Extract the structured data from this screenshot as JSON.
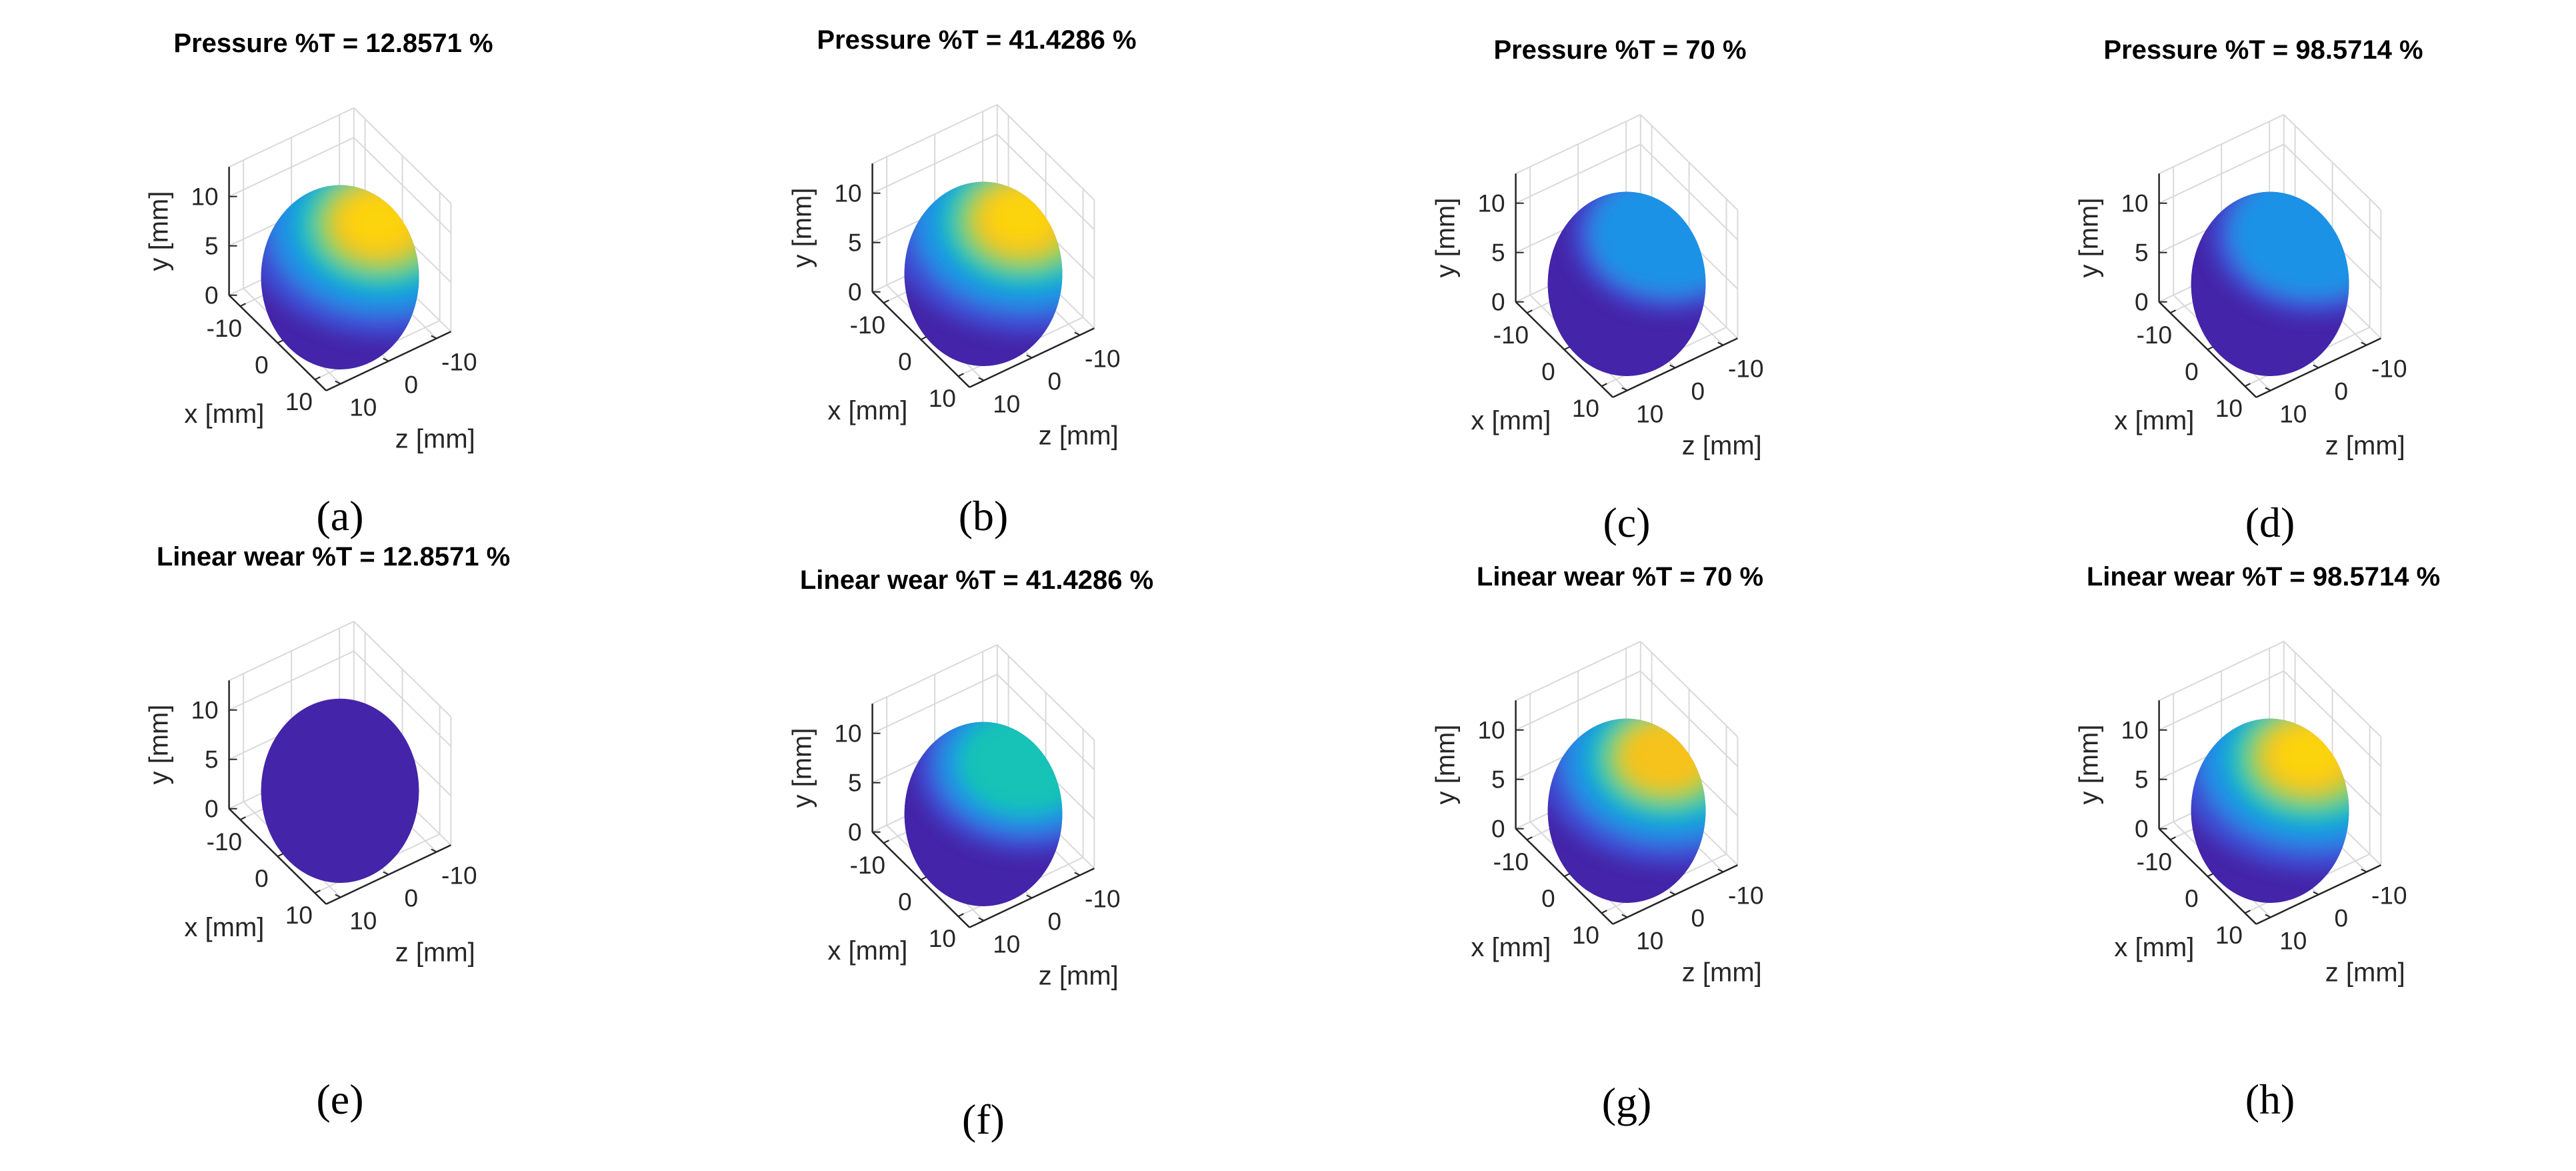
{
  "chart_data": [
    {
      "id": "a",
      "type": "surface3d",
      "caption": "(a)",
      "title": "Pressure  %T = 12.8571 %",
      "quantity": "Pressure",
      "percent_T": 12.8571,
      "hotspot_intensity": 1.0,
      "xlabel": "x [mm]",
      "ylabel": "y [mm]",
      "zlabel": "z [mm]",
      "yticks": [
        "0",
        "5",
        "10"
      ],
      "xticks": [
        "-10",
        "0",
        "10"
      ],
      "zticks": [
        "-10",
        "0",
        "10"
      ],
      "xlim": [
        -13,
        13
      ],
      "ylim": [
        0,
        13
      ],
      "zlim": [
        -13,
        13
      ]
    },
    {
      "id": "b",
      "type": "surface3d",
      "caption": "(b)",
      "title": "Pressure  %T = 41.4286 %",
      "quantity": "Pressure",
      "percent_T": 41.4286,
      "hotspot_intensity": 1.0,
      "xlabel": "x [mm]",
      "ylabel": "y [mm]",
      "zlabel": "z [mm]",
      "yticks": [
        "0",
        "5",
        "10"
      ],
      "xticks": [
        "-10",
        "0",
        "10"
      ],
      "zticks": [
        "-10",
        "0",
        "10"
      ],
      "xlim": [
        -13,
        13
      ],
      "ylim": [
        0,
        13
      ],
      "zlim": [
        -13,
        13
      ]
    },
    {
      "id": "c",
      "type": "surface3d",
      "caption": "(c)",
      "title": "Pressure  %T = 70 %",
      "quantity": "Pressure",
      "percent_T": 70,
      "hotspot_intensity": 0.35,
      "xlabel": "x [mm]",
      "ylabel": "y [mm]",
      "zlabel": "z [mm]",
      "yticks": [
        "0",
        "5",
        "10"
      ],
      "xticks": [
        "-10",
        "0",
        "10"
      ],
      "zticks": [
        "-10",
        "0",
        "10"
      ],
      "xlim": [
        -13,
        13
      ],
      "ylim": [
        0,
        13
      ],
      "zlim": [
        -13,
        13
      ]
    },
    {
      "id": "d",
      "type": "surface3d",
      "caption": "(d)",
      "title": "Pressure  %T = 98.5714 %",
      "quantity": "Pressure",
      "percent_T": 98.5714,
      "hotspot_intensity": 0.42,
      "xlabel": "x [mm]",
      "ylabel": "y [mm]",
      "zlabel": "z [mm]",
      "yticks": [
        "0",
        "5",
        "10"
      ],
      "xticks": [
        "-10",
        "0",
        "10"
      ],
      "zticks": [
        "-10",
        "0",
        "10"
      ],
      "xlim": [
        -13,
        13
      ],
      "ylim": [
        0,
        13
      ],
      "zlim": [
        -13,
        13
      ]
    },
    {
      "id": "e",
      "type": "surface3d",
      "caption": "(e)",
      "title": "Linear wear  %T = 12.8571 %",
      "quantity": "Linear wear",
      "percent_T": 12.8571,
      "hotspot_intensity": 0.0,
      "xlabel": "x [mm]",
      "ylabel": "y [mm]",
      "zlabel": "z [mm]",
      "yticks": [
        "0",
        "5",
        "10"
      ],
      "xticks": [
        "-10",
        "0",
        "10"
      ],
      "zticks": [
        "-10",
        "0",
        "10"
      ],
      "xlim": [
        -13,
        13
      ],
      "ylim": [
        0,
        13
      ],
      "zlim": [
        -13,
        13
      ]
    },
    {
      "id": "f",
      "type": "surface3d",
      "caption": "(f)",
      "title": "Linear wear  %T = 41.4286 %",
      "quantity": "Linear wear",
      "percent_T": 41.4286,
      "hotspot_intensity": 0.55,
      "xlabel": "x [mm]",
      "ylabel": "y [mm]",
      "zlabel": "z [mm]",
      "yticks": [
        "0",
        "5",
        "10"
      ],
      "xticks": [
        "-10",
        "0",
        "10"
      ],
      "zticks": [
        "-10",
        "0",
        "10"
      ],
      "xlim": [
        -13,
        13
      ],
      "ylim": [
        0,
        13
      ],
      "zlim": [
        -13,
        13
      ]
    },
    {
      "id": "g",
      "type": "surface3d",
      "caption": "(g)",
      "title": "Linear wear  %T = 70 %",
      "quantity": "Linear wear",
      "percent_T": 70,
      "hotspot_intensity": 0.88,
      "xlabel": "x [mm]",
      "ylabel": "y [mm]",
      "zlabel": "z [mm]",
      "yticks": [
        "0",
        "5",
        "10"
      ],
      "xticks": [
        "-10",
        "0",
        "10"
      ],
      "zticks": [
        "-10",
        "0",
        "10"
      ],
      "xlim": [
        -13,
        13
      ],
      "ylim": [
        0,
        13
      ],
      "zlim": [
        -13,
        13
      ]
    },
    {
      "id": "h",
      "type": "surface3d",
      "caption": "(h)",
      "title": "Linear wear  %T = 98.5714 %",
      "quantity": "Linear wear",
      "percent_T": 98.5714,
      "hotspot_intensity": 1.0,
      "xlabel": "x [mm]",
      "ylabel": "y [mm]",
      "zlabel": "z [mm]",
      "yticks": [
        "0",
        "5",
        "10"
      ],
      "xticks": [
        "-10",
        "0",
        "10"
      ],
      "zticks": [
        "-10",
        "0",
        "10"
      ],
      "xlim": [
        -13,
        13
      ],
      "ylim": [
        0,
        13
      ],
      "zlim": [
        -13,
        13
      ]
    }
  ],
  "colors": {
    "base": "#4424a8",
    "ring1": "#3d4fd6",
    "ring2": "#1f92e6",
    "ring3": "#16c3b6",
    "ring4": "#8ad248",
    "ring5": "#f6c21f",
    "core": "#fcd40a",
    "axis": "#262626",
    "grid": "#d9d9d9"
  }
}
